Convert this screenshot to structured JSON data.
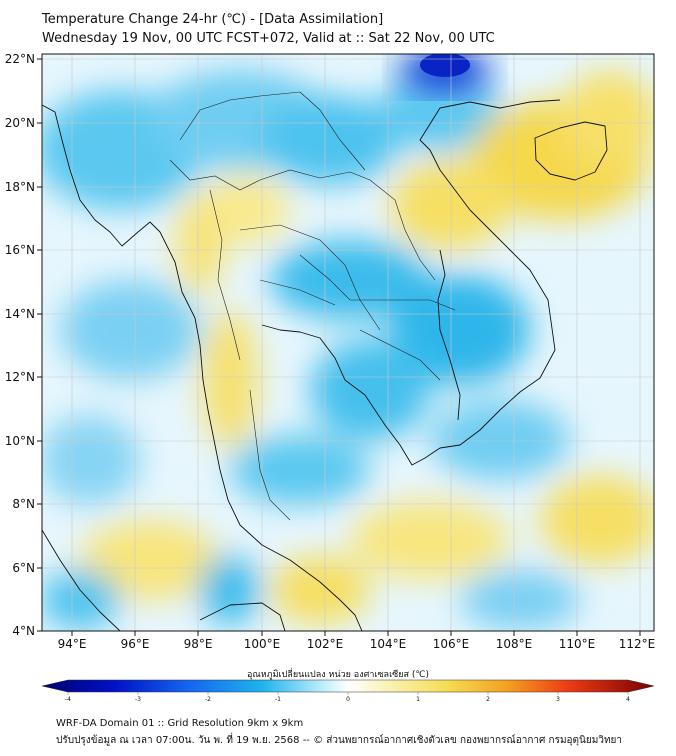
{
  "header": {
    "title": "Temperature Change 24-hr (℃) - [Data Assimilation]",
    "subtitle": "Wednesday 19 Nov, 00 UTC FCST+072, Valid at :: Sat 22 Nov, 00 UTC"
  },
  "map": {
    "lat_labels": [
      "22°N",
      "20°N",
      "18°N",
      "16°N",
      "14°N",
      "12°N",
      "10°N",
      "8°N",
      "6°N",
      "4°N"
    ],
    "lon_labels": [
      "94°E",
      "96°E",
      "98°E",
      "100°E",
      "102°E",
      "104°E",
      "106°E",
      "108°E",
      "110°E",
      "112°E"
    ],
    "colors": {
      "cold": "#1aa9e6",
      "warm": "#f6df5e",
      "deep_cold": "#0a2bd6",
      "border": "#111111",
      "grid": "#cfcfcf"
    }
  },
  "colorbar": {
    "label": "อุณหภูมิเปลี่ยนแปลง หน่วย องศาเซลเซียส (℃)",
    "ticks": [
      "-4",
      "-3",
      "-2",
      "-1",
      "0",
      "1",
      "2",
      "3",
      "4"
    ],
    "min": -4,
    "max": 4
  },
  "footer": {
    "line1": "WRF-DA Domain 01 :: Grid Resolution 9km x 9km",
    "line2": "ปรับปรุงข้อมูล ณ เวลา 07:00น. วัน พ. ที่ 19 พ.ย. 2568 -- © ส่วนพยากรณ์อากาศเชิงตัวเลข กองพยากรณ์อากาศ กรมอุตุนิยมวิทยา"
  }
}
